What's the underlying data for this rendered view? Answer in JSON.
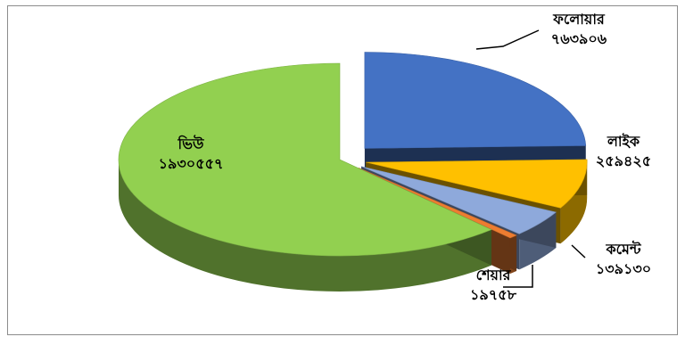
{
  "chart_data": {
    "type": "pie",
    "style": "3d-exploded",
    "title": "",
    "slices": [
      {
        "name": "ফলোয়ার",
        "value_label": "৭৬৩৯০৬",
        "value": 763906,
        "color": "#4472C4"
      },
      {
        "name": "লাইক",
        "value_label": "২৫৯৪২৫",
        "value": 259425,
        "color": "#FFC000"
      },
      {
        "name": "কমেন্ট",
        "value_label": "১৩৯১৩০",
        "value": 139130,
        "color": "#8EA9DB"
      },
      {
        "name": "শেয়ার",
        "value_label": "১৯৭৫৮",
        "value": 19758,
        "color": "#ED7D31"
      },
      {
        "name": "ভিউ",
        "value_label": "১৯৩০৫৫৭",
        "value": 1930557,
        "color": "#92D050"
      }
    ],
    "legend": "none",
    "data_labels": "name and value"
  }
}
